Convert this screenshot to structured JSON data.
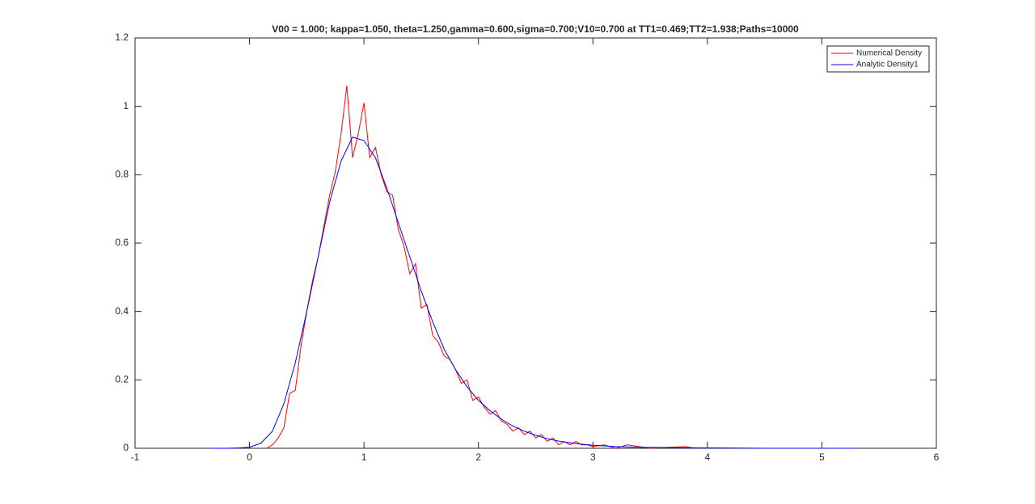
{
  "chart_data": {
    "type": "line",
    "title": "V00 = 1.000; kappa=1.050, theta=1.250,gamma=0.600,sigma=0.700;V10=0.700 at TT1=0.469;TT2=1.938;Paths=10000",
    "xlim": [
      -1,
      6
    ],
    "xticks": [
      -1,
      0,
      1,
      2,
      3,
      4,
      5,
      6
    ],
    "ylim": [
      0,
      1.2
    ],
    "yticks": [
      0,
      0.2,
      0.4,
      0.6,
      0.8,
      1,
      1.2
    ],
    "legend": "top-right",
    "series": [
      {
        "name": "Numerical Density",
        "color": "#ff0000",
        "x": [
          0.15,
          0.2,
          0.25,
          0.3,
          0.35,
          0.4,
          0.45,
          0.5,
          0.55,
          0.6,
          0.65,
          0.7,
          0.75,
          0.8,
          0.85,
          0.9,
          0.95,
          1.0,
          1.05,
          1.1,
          1.15,
          1.2,
          1.25,
          1.3,
          1.35,
          1.4,
          1.45,
          1.5,
          1.55,
          1.6,
          1.65,
          1.7,
          1.75,
          1.8,
          1.85,
          1.9,
          1.95,
          2.0,
          2.05,
          2.1,
          2.15,
          2.2,
          2.25,
          2.3,
          2.35,
          2.4,
          2.45,
          2.5,
          2.55,
          2.6,
          2.65,
          2.7,
          2.75,
          2.8,
          2.85,
          2.9,
          2.95,
          3.0,
          3.1,
          3.2,
          3.3,
          3.4,
          3.5,
          3.8,
          3.9
        ],
        "values": [
          0,
          0.01,
          0.03,
          0.06,
          0.16,
          0.17,
          0.3,
          0.4,
          0.49,
          0.56,
          0.65,
          0.74,
          0.81,
          0.92,
          1.06,
          0.85,
          0.92,
          1.01,
          0.85,
          0.88,
          0.8,
          0.75,
          0.74,
          0.64,
          0.59,
          0.51,
          0.54,
          0.41,
          0.42,
          0.33,
          0.31,
          0.27,
          0.26,
          0.23,
          0.19,
          0.2,
          0.14,
          0.15,
          0.12,
          0.1,
          0.11,
          0.08,
          0.07,
          0.05,
          0.06,
          0.04,
          0.05,
          0.03,
          0.04,
          0.02,
          0.03,
          0.01,
          0.02,
          0.01,
          0.02,
          0.01,
          0.01,
          0.005,
          0.01,
          0,
          0.01,
          0.005,
          0,
          0.005,
          0
        ]
      },
      {
        "name": "Analytic Density1",
        "color": "#0000ff",
        "x": [
          -0.35,
          -0.2,
          -0.1,
          0.0,
          0.1,
          0.2,
          0.3,
          0.4,
          0.5,
          0.6,
          0.7,
          0.8,
          0.9,
          1.0,
          1.1,
          1.2,
          1.3,
          1.4,
          1.5,
          1.6,
          1.7,
          1.8,
          1.9,
          2.0,
          2.1,
          2.2,
          2.3,
          2.4,
          2.5,
          2.6,
          2.7,
          2.8,
          2.9,
          3.0,
          3.2,
          3.4,
          3.6,
          4.0,
          4.5,
          5.3
        ],
        "values": [
          0,
          0,
          0.001,
          0.003,
          0.015,
          0.05,
          0.13,
          0.25,
          0.4,
          0.56,
          0.72,
          0.84,
          0.91,
          0.9,
          0.85,
          0.76,
          0.66,
          0.56,
          0.46,
          0.37,
          0.29,
          0.23,
          0.18,
          0.14,
          0.11,
          0.085,
          0.065,
          0.05,
          0.038,
          0.028,
          0.021,
          0.016,
          0.012,
          0.009,
          0.005,
          0.003,
          0.002,
          0.001,
          0,
          0
        ]
      }
    ]
  }
}
